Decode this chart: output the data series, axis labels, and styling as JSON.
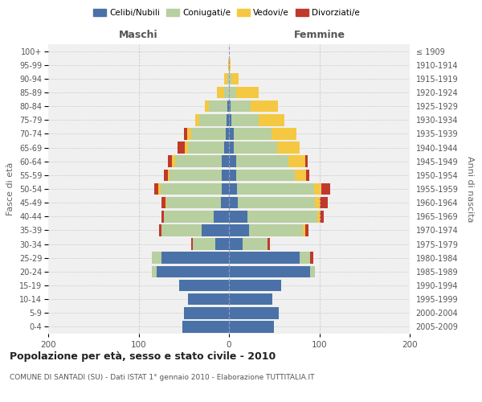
{
  "age_groups": [
    "0-4",
    "5-9",
    "10-14",
    "15-19",
    "20-24",
    "25-29",
    "30-34",
    "35-39",
    "40-44",
    "45-49",
    "50-54",
    "55-59",
    "60-64",
    "65-69",
    "70-74",
    "75-79",
    "80-84",
    "85-89",
    "90-94",
    "95-99",
    "100+"
  ],
  "birth_years": [
    "2005-2009",
    "2000-2004",
    "1995-1999",
    "1990-1994",
    "1985-1989",
    "1980-1984",
    "1975-1979",
    "1970-1974",
    "1965-1969",
    "1960-1964",
    "1955-1959",
    "1950-1954",
    "1945-1949",
    "1940-1944",
    "1935-1939",
    "1930-1934",
    "1925-1929",
    "1920-1924",
    "1915-1919",
    "1910-1914",
    "≤ 1909"
  ],
  "male": {
    "celibi": [
      52,
      50,
      45,
      55,
      80,
      75,
      15,
      30,
      17,
      9,
      8,
      8,
      8,
      5,
      4,
      3,
      2,
      0,
      0,
      0,
      0
    ],
    "coniugati": [
      0,
      0,
      0,
      0,
      5,
      10,
      25,
      45,
      55,
      60,
      68,
      58,
      52,
      40,
      38,
      30,
      20,
      5,
      2,
      0,
      0
    ],
    "vedovi": [
      0,
      0,
      0,
      0,
      0,
      0,
      0,
      0,
      0,
      1,
      2,
      2,
      3,
      4,
      4,
      4,
      5,
      8,
      3,
      1,
      0
    ],
    "divorziati": [
      0,
      0,
      0,
      0,
      0,
      0,
      2,
      2,
      3,
      5,
      5,
      4,
      5,
      8,
      4,
      0,
      0,
      0,
      0,
      0,
      0
    ]
  },
  "female": {
    "nubili": [
      50,
      55,
      48,
      58,
      90,
      78,
      15,
      22,
      20,
      10,
      9,
      8,
      8,
      5,
      5,
      3,
      2,
      0,
      0,
      0,
      0
    ],
    "coniugate": [
      0,
      0,
      0,
      0,
      5,
      12,
      28,
      60,
      78,
      85,
      85,
      65,
      58,
      48,
      42,
      30,
      22,
      8,
      3,
      0,
      0
    ],
    "vedove": [
      0,
      0,
      0,
      0,
      0,
      0,
      0,
      2,
      2,
      5,
      8,
      12,
      18,
      25,
      28,
      28,
      30,
      25,
      8,
      2,
      0
    ],
    "divorziate": [
      0,
      0,
      0,
      0,
      0,
      3,
      2,
      4,
      5,
      9,
      10,
      4,
      3,
      0,
      0,
      0,
      0,
      0,
      0,
      0,
      0
    ]
  },
  "colors": {
    "celibi": "#4a72a8",
    "coniugati": "#b8cfa0",
    "vedovi": "#f5c842",
    "divorziati": "#c0392b"
  },
  "title": "Popolazione per età, sesso e stato civile - 2010",
  "subtitle": "COMUNE DI SANTADI (SU) - Dati ISTAT 1° gennaio 2010 - Elaborazione TUTTITALIA.IT",
  "xlabel_left": "Maschi",
  "xlabel_right": "Femmine",
  "ylabel_left": "Fasce di età",
  "ylabel_right": "Anni di nascita",
  "xlim": 200,
  "bg_color": "#ffffff",
  "plot_bg": "#f0f0f0",
  "grid_color": "#cccccc"
}
